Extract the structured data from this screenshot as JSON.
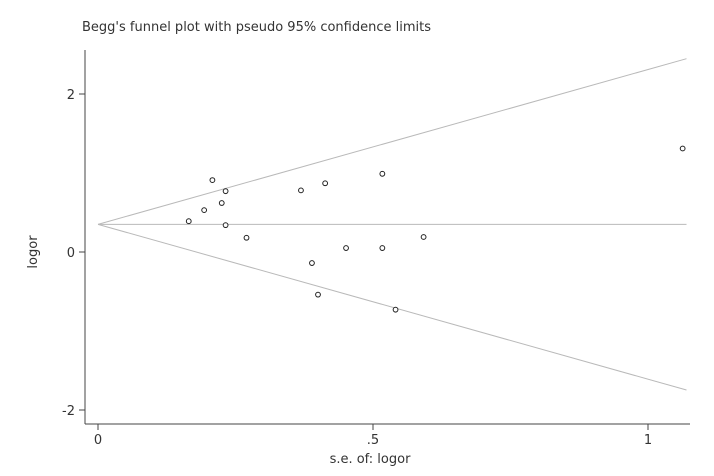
{
  "chart_data": {
    "type": "scatter",
    "title": "Begg's funnel plot with pseudo 95% confidence limits",
    "xlabel": "s.e. of: logor",
    "ylabel": "logor",
    "xlim": [
      0,
      1.07
    ],
    "ylim": [
      -2.0,
      2.35
    ],
    "x_ticks": [
      {
        "value": 0,
        "label": "0"
      },
      {
        "value": 0.5,
        "label": ".5"
      },
      {
        "value": 1,
        "label": "1"
      }
    ],
    "y_ticks": [
      {
        "value": 2,
        "label": "2"
      },
      {
        "value": 0,
        "label": "0"
      },
      {
        "value": -2,
        "label": "-2"
      }
    ],
    "pooled_estimate": 0.35,
    "confidence_limits": {
      "z": 1.96,
      "se_max": 1.07
    },
    "points": [
      {
        "x": 0.165,
        "y": 0.39
      },
      {
        "x": 0.193,
        "y": 0.53
      },
      {
        "x": 0.208,
        "y": 0.91
      },
      {
        "x": 0.225,
        "y": 0.62
      },
      {
        "x": 0.232,
        "y": 0.77
      },
      {
        "x": 0.232,
        "y": 0.34
      },
      {
        "x": 0.27,
        "y": 0.18
      },
      {
        "x": 0.369,
        "y": 0.78
      },
      {
        "x": 0.389,
        "y": -0.14
      },
      {
        "x": 0.4,
        "y": -0.54
      },
      {
        "x": 0.413,
        "y": 0.87
      },
      {
        "x": 0.451,
        "y": 0.05
      },
      {
        "x": 0.517,
        "y": 0.99
      },
      {
        "x": 0.517,
        "y": 0.05
      },
      {
        "x": 0.541,
        "y": -0.73
      },
      {
        "x": 0.592,
        "y": 0.19
      },
      {
        "x": 1.063,
        "y": 1.31
      }
    ],
    "colors": {
      "axis": "#444444",
      "reference_lines": "#b9b9b9",
      "marker": "#222222"
    },
    "grid": false,
    "legend": "none"
  }
}
